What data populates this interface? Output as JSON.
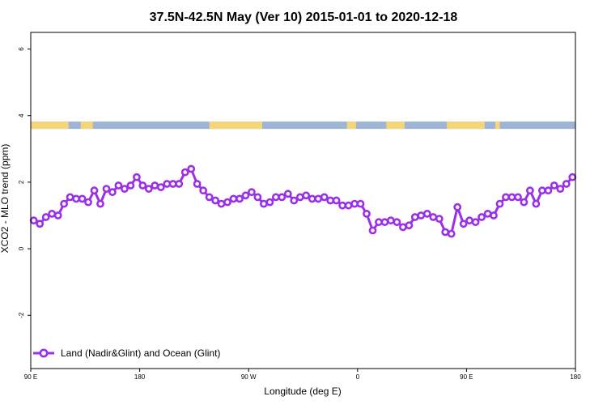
{
  "chart_data": {
    "type": "line",
    "title": "37.5N-42.5N May (Ver 10)   2015-01-01 to 2020-12-18",
    "xlabel": "Longitude (deg E)",
    "ylabel": "XCO2 - MLO trend (ppm)",
    "xlim": [
      90,
      450
    ],
    "ylim": [
      -3.6,
      6.5
    ],
    "x_ticks": [
      {
        "value": 90,
        "label": "90 E"
      },
      {
        "value": 162,
        "label": "180"
      },
      {
        "value": 234,
        "label": "90 W"
      },
      {
        "value": 306,
        "label": "0"
      },
      {
        "value": 378,
        "label": "90 E"
      },
      {
        "value": 450,
        "label": "180"
      }
    ],
    "y_ticks": [
      {
        "value": -2,
        "label": "-2"
      },
      {
        "value": 0,
        "label": "0"
      },
      {
        "value": 2,
        "label": "2"
      },
      {
        "value": 4,
        "label": "4"
      },
      {
        "value": 6,
        "label": "6"
      }
    ],
    "grid": false,
    "legend_position": "bottom-left",
    "series": [
      {
        "name": "Land (Nadir&Glint) and Ocean (Glint)",
        "color": "#9b30e6",
        "x": [
          92.0,
          96.0,
          100.0,
          104.0,
          108.0,
          112.0,
          116.0,
          120.0,
          124.0,
          128.0,
          132.0,
          136.0,
          140.0,
          144.0,
          148.0,
          152.0,
          156.0,
          160.0,
          164.0,
          168.0,
          172.0,
          176.0,
          180.0,
          184.0,
          188.0,
          192.0,
          196.0,
          200.0,
          204.0,
          208.0,
          212.0,
          216.0,
          220.0,
          224.0,
          228.0,
          232.0,
          236.0,
          240.0,
          244.0,
          248.0,
          252.0,
          256.0,
          260.0,
          264.0,
          268.0,
          272.0,
          276.0,
          280.0,
          284.0,
          288.0,
          292.0,
          296.0,
          300.0,
          304.0,
          308.0,
          312.0,
          316.0,
          320.0,
          324.0,
          328.0,
          332.0,
          336.0,
          340.0,
          344.0,
          348.0,
          352.0,
          356.0,
          360.0,
          364.0,
          368.0,
          372.0,
          376.0,
          380.0,
          384.0,
          388.0,
          392.0,
          396.0,
          400.0,
          404.0,
          408.0,
          412.0,
          416.0,
          420.0,
          424.0,
          428.0,
          432.0,
          436.0,
          440.0,
          444.0,
          448.0
        ],
        "values": [
          0.85,
          0.75,
          0.95,
          1.05,
          1.0,
          1.35,
          1.55,
          1.5,
          1.5,
          1.4,
          1.75,
          1.35,
          1.8,
          1.7,
          1.9,
          1.8,
          1.9,
          2.15,
          1.9,
          1.8,
          1.9,
          1.85,
          1.95,
          1.95,
          1.95,
          2.3,
          2.4,
          1.95,
          1.75,
          1.55,
          1.45,
          1.35,
          1.4,
          1.5,
          1.5,
          1.6,
          1.7,
          1.55,
          1.35,
          1.4,
          1.55,
          1.55,
          1.65,
          1.45,
          1.55,
          1.6,
          1.5,
          1.5,
          1.55,
          1.45,
          1.45,
          1.3,
          1.3,
          1.35,
          1.35,
          1.05,
          0.55,
          0.8,
          0.8,
          0.85,
          0.8,
          0.65,
          0.7,
          0.95,
          1.0,
          1.05,
          0.95,
          0.9,
          0.5,
          0.45,
          1.25,
          0.75,
          0.85,
          0.8,
          0.95,
          1.05,
          1.0,
          1.35,
          1.55,
          1.55,
          1.55,
          1.4,
          1.75,
          1.35,
          1.75,
          1.75,
          1.9,
          1.8,
          1.95,
          2.15
        ]
      }
    ]
  },
  "surface_strip": {
    "y_range": [
      3.6,
      3.82
    ],
    "ocean_color": "#9db4d4",
    "land_color": "#f4d57a",
    "land_segments": [
      [
        90,
        115
      ],
      [
        123,
        131
      ],
      [
        208,
        243
      ],
      [
        299,
        305
      ],
      [
        325,
        337
      ],
      [
        365,
        390
      ],
      [
        397,
        400
      ]
    ]
  }
}
